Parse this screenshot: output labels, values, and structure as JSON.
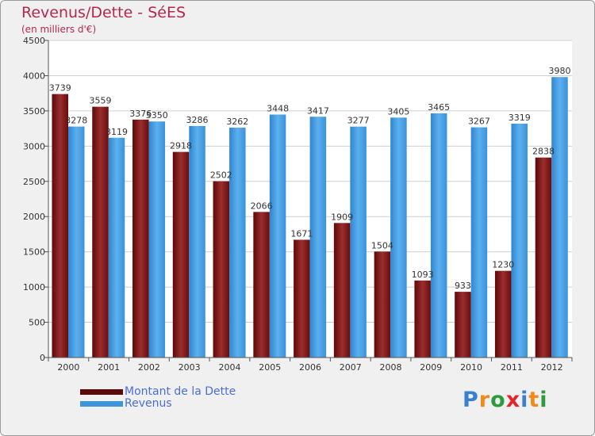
{
  "header": {
    "title": "Revenus/Dette - SéES",
    "subtitle": "(en milliers d'€)"
  },
  "chart_data": {
    "type": "bar",
    "title": "Revenus/Dette - SéES",
    "subtitle": "(en milliers d'€)",
    "categories": [
      "2000",
      "2001",
      "2002",
      "2003",
      "2004",
      "2005",
      "2006",
      "2007",
      "2008",
      "2009",
      "2010",
      "2011",
      "2012"
    ],
    "series": [
      {
        "name": "Montant de la Dette",
        "color": "#7a1414",
        "values": [
          3739,
          3559,
          3376,
          2918,
          2502,
          2066,
          1671,
          1909,
          1504,
          1093,
          933,
          1230,
          2838
        ],
        "labels": [
          "3739",
          "3559",
          "3376",
          "2918",
          "2502",
          "2066",
          "1671",
          "1909",
          "1504",
          "1093",
          "933",
          "1230",
          "2838"
        ]
      },
      {
        "name": "Revenus",
        "color": "#3c96dc",
        "values": [
          3278,
          3119,
          3350,
          3286,
          3262,
          3448,
          3417,
          3277,
          3405,
          3465,
          3267,
          3319,
          3980
        ],
        "labels": [
          "3278",
          "3119",
          "3350",
          "3286",
          "3262",
          "3448",
          "3417",
          "3277",
          "3405",
          "3465",
          "3267",
          "3319",
          "3980"
        ]
      }
    ],
    "ylim": [
      0,
      4500
    ],
    "yticks": [
      0,
      500,
      1000,
      1500,
      2000,
      2500,
      3000,
      3500,
      4000,
      4500
    ],
    "grid": true,
    "legend_position": "bottom-left"
  },
  "legend": {
    "items": [
      {
        "label": "Montant de la Dette",
        "color": "#5a0a0a"
      },
      {
        "label": "Revenus",
        "color": "#3c96dc"
      }
    ]
  },
  "logo": {
    "text": "Proxiti",
    "letters": [
      {
        "ch": "P",
        "color": "#3a7fd0"
      },
      {
        "ch": "r",
        "color": "#f08a1c"
      },
      {
        "ch": "o",
        "color": "#2b9b3b"
      },
      {
        "ch": "x",
        "color": "#e02828"
      },
      {
        "ch": "i",
        "color": "#3a7fd0"
      },
      {
        "ch": "t",
        "color": "#f08a1c"
      },
      {
        "ch": "i",
        "color": "#2b9b3b"
      }
    ]
  }
}
